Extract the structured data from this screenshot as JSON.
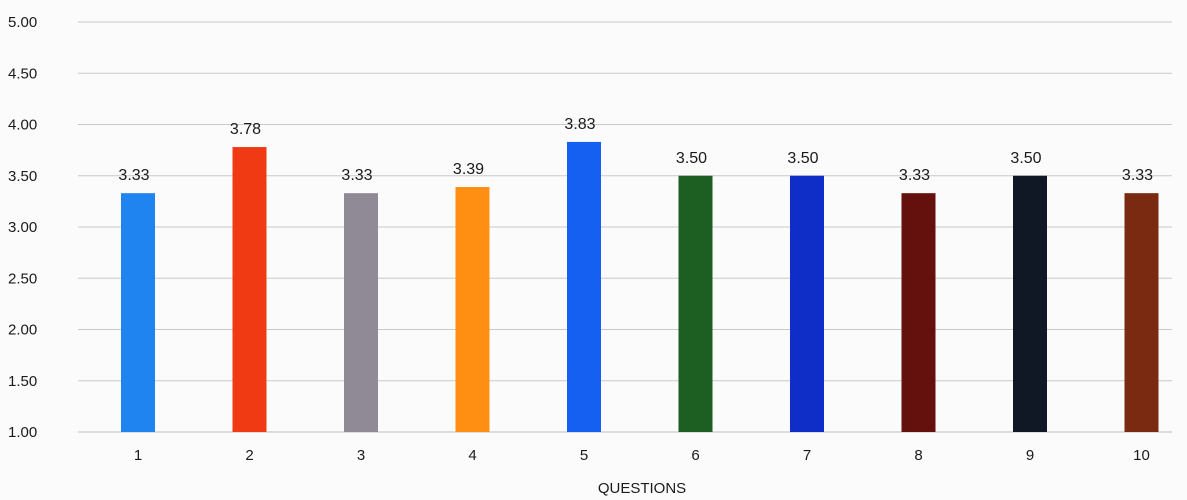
{
  "chart_data": {
    "type": "bar",
    "title": "",
    "xlabel": "QUESTIONS",
    "ylabel": "",
    "categories": [
      "1",
      "2",
      "3",
      "4",
      "5",
      "6",
      "7",
      "8",
      "9",
      "10"
    ],
    "values": [
      3.33,
      3.78,
      3.33,
      3.39,
      3.83,
      3.5,
      3.5,
      3.33,
      3.5,
      3.33
    ],
    "value_labels": [
      "3.33",
      "3.78",
      "3.33",
      "3.39",
      "3.83",
      "3.50",
      "3.50",
      "3.33",
      "3.50",
      "3.33"
    ],
    "bar_colors": [
      "#1f84f0",
      "#f03a14",
      "#8f8a96",
      "#ff8f12",
      "#1560f0",
      "#1d5e22",
      "#0f2ec8",
      "#64110e",
      "#101826",
      "#7a2a10"
    ],
    "ylim": [
      1.0,
      5.0
    ],
    "yticks": [
      1.0,
      1.5,
      2.0,
      2.5,
      3.0,
      3.5,
      4.0,
      4.5,
      5.0
    ],
    "ytick_labels": [
      "1.00",
      "1.50",
      "2.00",
      "2.50",
      "3.00",
      "3.50",
      "4.00",
      "4.50",
      "5.00"
    ],
    "grid": true,
    "legend": "none"
  }
}
